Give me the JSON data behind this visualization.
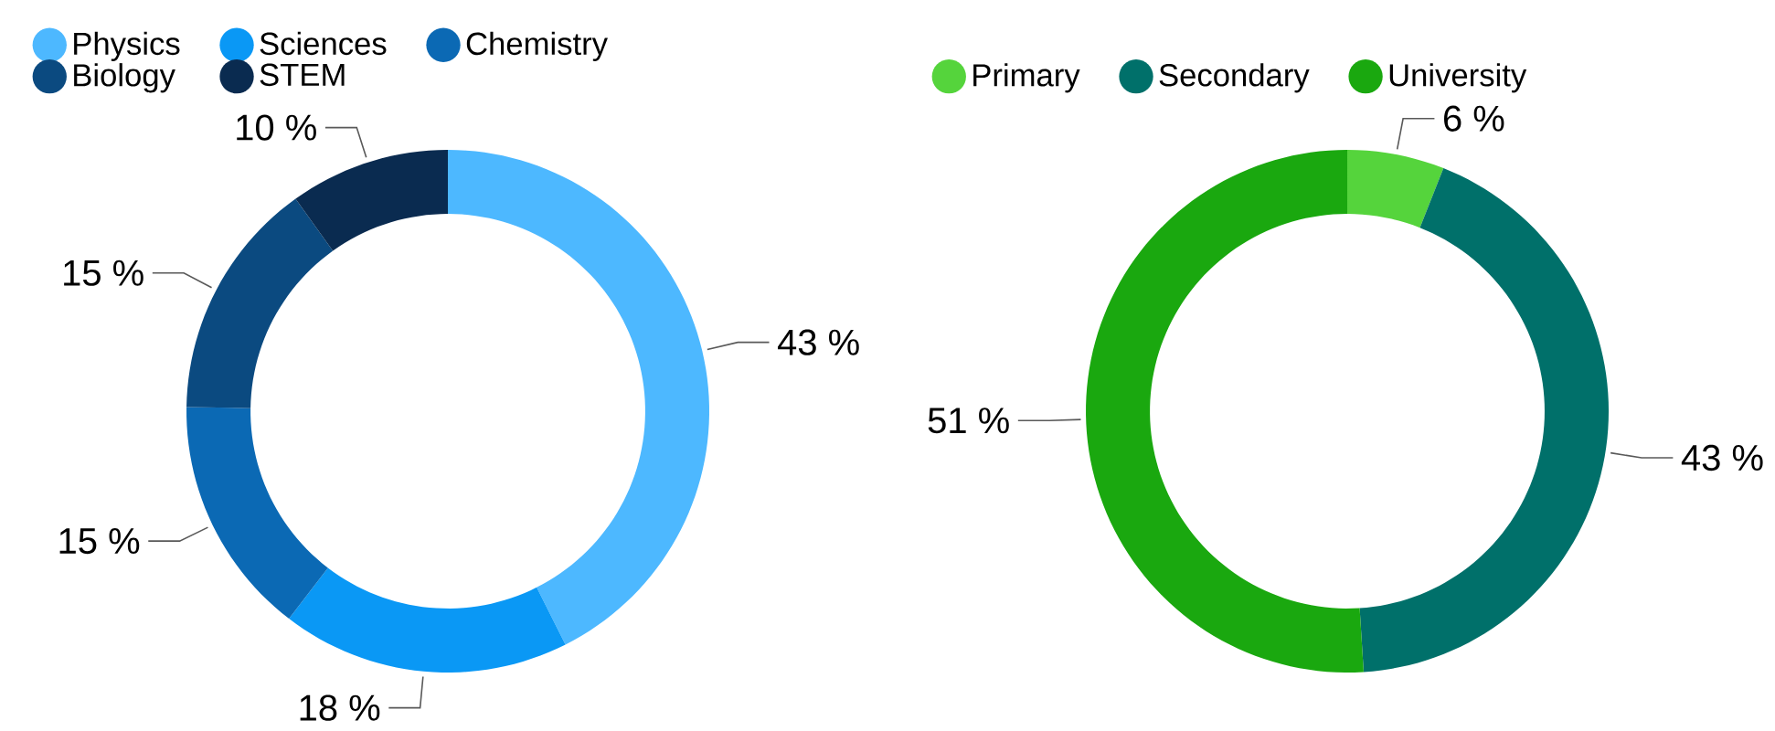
{
  "chart_data": [
    {
      "type": "donut",
      "categories": [
        "Physics",
        "Sciences",
        "Chemistry",
        "Biology",
        "STEM"
      ],
      "values": [
        43,
        18,
        15,
        15,
        10
      ],
      "value_labels": [
        "43 %",
        "18 %",
        "15 %",
        "15 %",
        "10 %"
      ],
      "colors": [
        "#4db8ff",
        "#0a98f5",
        "#0b69b4",
        "#0b4a80",
        "#0a2b50"
      ],
      "legend": "top"
    },
    {
      "type": "donut",
      "categories": [
        "Primary",
        "Secondary",
        "University"
      ],
      "values": [
        6,
        43,
        51
      ],
      "value_labels": [
        "6 %",
        "43 %",
        "51 %"
      ],
      "colors": [
        "#55d43c",
        "#00706a",
        "#1aa80f"
      ],
      "legend": "top"
    }
  ]
}
